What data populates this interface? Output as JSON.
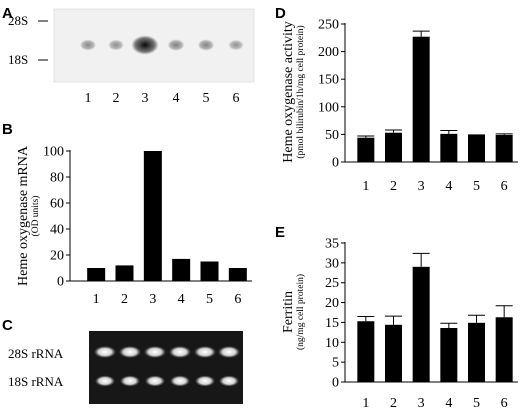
{
  "panels": {
    "A": {
      "letter": "A",
      "markers": [
        "28S",
        "18S"
      ],
      "lanes": [
        "1",
        "2",
        "3",
        "4",
        "5",
        "6"
      ],
      "band_intensity": [
        0.25,
        0.22,
        0.95,
        0.3,
        0.28,
        0.2
      ]
    },
    "C": {
      "letter": "C",
      "markers": [
        "28S rRNA",
        "18S rRNA"
      ]
    }
  },
  "chart_data": [
    {
      "id": "B",
      "letter": "B",
      "type": "bar",
      "categories": [
        "1",
        "2",
        "3",
        "4",
        "5",
        "6"
      ],
      "values": [
        10,
        12,
        100,
        17,
        15,
        10
      ],
      "errors": [
        0,
        0,
        0,
        0,
        0,
        0
      ],
      "ylabel": "Heme oxygenase mRNA",
      "yunits": "(OD units)",
      "ylim": [
        0,
        100
      ],
      "yticks": [
        0,
        20,
        40,
        60,
        80,
        100
      ],
      "grid": false
    },
    {
      "id": "D",
      "letter": "D",
      "type": "bar",
      "categories": [
        "1",
        "2",
        "3",
        "4",
        "5",
        "6"
      ],
      "values": [
        44,
        53,
        227,
        51,
        50,
        49
      ],
      "errors": [
        3,
        5,
        10,
        6,
        0,
        2
      ],
      "ylabel": "Heme oxygenase activity",
      "yunits": "(pmol bilirubin/1h/mg cell protein)",
      "ylim": [
        0,
        250
      ],
      "yticks": [
        0,
        50,
        100,
        150,
        200,
        250
      ],
      "grid": false
    },
    {
      "id": "E",
      "letter": "E",
      "type": "bar",
      "categories": [
        "1",
        "2",
        "3",
        "4",
        "5",
        "6"
      ],
      "values": [
        15.3,
        14.4,
        29,
        13.6,
        14.9,
        16.3
      ],
      "errors": [
        1.2,
        2.2,
        3.4,
        1.2,
        1.9,
        2.9
      ],
      "ylabel": "Ferritin",
      "yunits": "(ng/mg cell protein)",
      "ylim": [
        0,
        35
      ],
      "yticks": [
        0,
        5,
        10,
        15,
        20,
        25,
        30,
        35
      ],
      "grid": false
    }
  ]
}
